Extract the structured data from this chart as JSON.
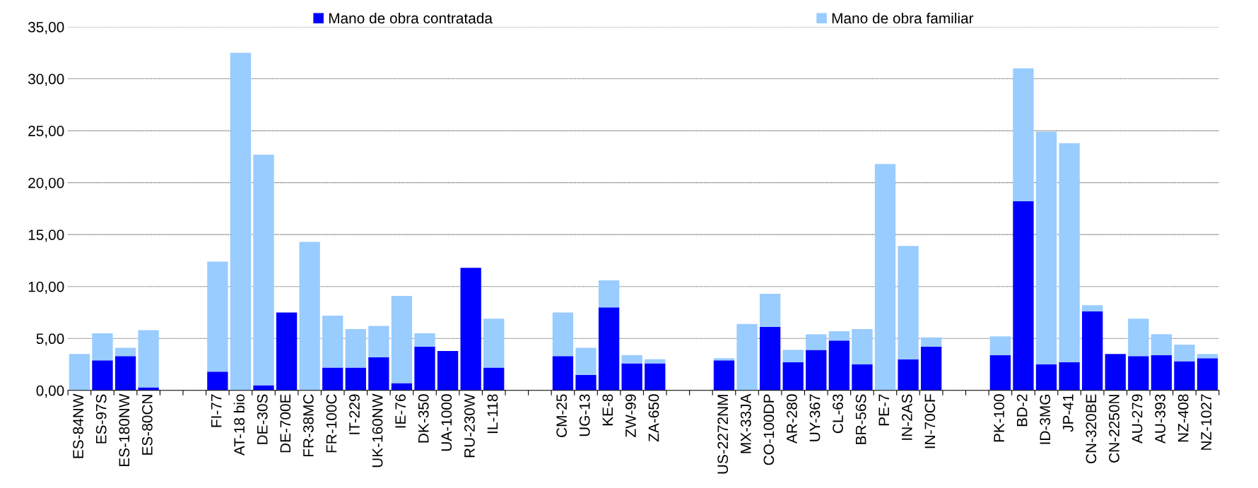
{
  "chart_data": {
    "type": "bar",
    "stacked": true,
    "categories": [
      "ES-84NW",
      "ES-97S",
      "ES-180NW",
      "ES-80CN",
      null,
      null,
      "FI-77",
      "AT-18 bio",
      "DE-30S",
      "DE-700E",
      "FR-38MC",
      "FR-100C",
      "IT-229",
      "UK-160NW",
      "IE-76",
      "DK-350",
      "UA-1000",
      "RU-230W",
      "IL-118",
      null,
      null,
      "CM-25",
      "UG-13",
      "KE-8",
      "ZW-99",
      "ZA-650",
      null,
      null,
      "US-2272NM",
      "MX-33JA",
      "CO-100DP",
      "AR-280",
      "UY-367",
      "CL-63",
      "BR-56S",
      "PE-7",
      "IN-2AS",
      "IN-70CF",
      null,
      null,
      "PK-100",
      "BD-2",
      "ID-3MG",
      "JP-41",
      "CN-320BE",
      "CN-2250N",
      "AU-279",
      "AU-393",
      "NZ-408",
      "NZ-1027"
    ],
    "series": [
      {
        "name": "Mano de obra contratada",
        "color": "#0000ff",
        "values": [
          0,
          2.9,
          3.3,
          0.3,
          null,
          null,
          1.8,
          0,
          0.5,
          7.5,
          0,
          2.2,
          2.2,
          3.2,
          0.7,
          4.2,
          3.8,
          11.8,
          2.2,
          null,
          null,
          3.3,
          1.5,
          8.0,
          2.6,
          2.6,
          null,
          null,
          2.9,
          0,
          6.1,
          2.7,
          3.9,
          4.8,
          2.5,
          0,
          3.0,
          4.2,
          null,
          null,
          3.4,
          18.2,
          2.5,
          2.7,
          7.6,
          3.5,
          3.3,
          3.4,
          2.8,
          3.1
        ]
      },
      {
        "name": "Mano de obra familiar",
        "color": "#99ccff",
        "values": [
          3.5,
          2.6,
          0.8,
          5.5,
          null,
          null,
          10.6,
          32.5,
          22.2,
          0,
          14.3,
          5.0,
          3.7,
          3.0,
          8.4,
          1.3,
          0,
          0,
          4.7,
          null,
          null,
          4.2,
          2.6,
          2.6,
          0.8,
          0.4,
          null,
          null,
          0.2,
          6.4,
          3.2,
          1.2,
          1.5,
          0.9,
          3.4,
          21.8,
          10.9,
          0.9,
          null,
          null,
          1.8,
          12.8,
          22.4,
          21.1,
          0.6,
          0,
          3.6,
          2.0,
          1.6,
          0.4
        ]
      }
    ],
    "ylim": [
      0,
      35
    ],
    "yticks": [
      {
        "value": 0,
        "label": "0,00"
      },
      {
        "value": 5,
        "label": "5,00"
      },
      {
        "value": 10,
        "label": "10,00"
      },
      {
        "value": 15,
        "label": "15,00"
      },
      {
        "value": 20,
        "label": "20,00"
      },
      {
        "value": 25,
        "label": "25,00"
      },
      {
        "value": 30,
        "label": "30,00"
      },
      {
        "value": 35,
        "label": "35,00"
      }
    ],
    "grid": "y",
    "legend": "top"
  }
}
